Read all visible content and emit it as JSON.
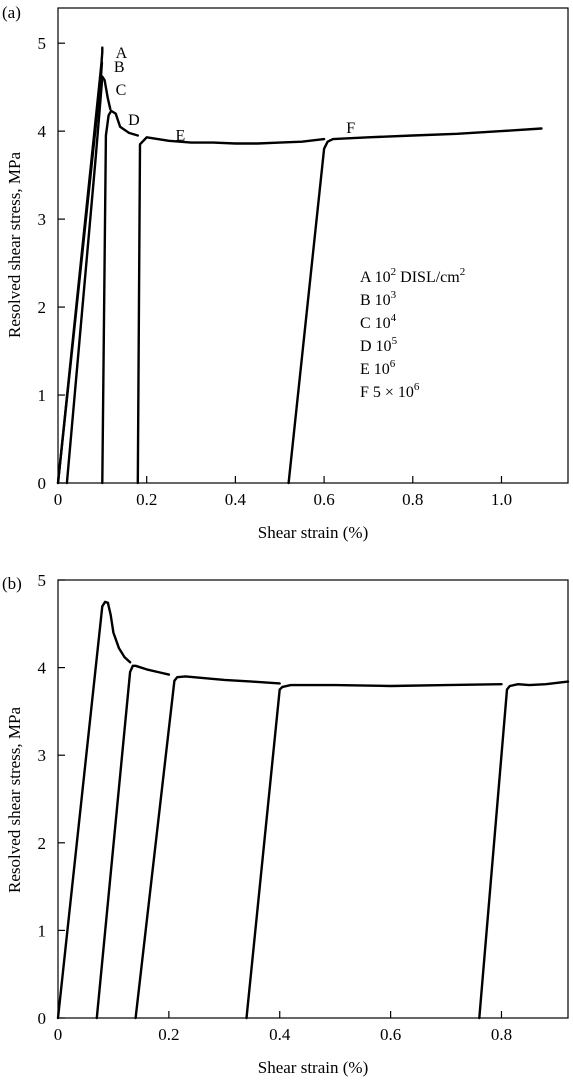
{
  "chart_data": [
    {
      "type": "line",
      "panel_label": "(a)",
      "xlabel": "Shear strain (%)",
      "ylabel": "Resolved shear stress, MPa",
      "xlim": [
        0,
        1.15
      ],
      "ylim": [
        0,
        5.4
      ],
      "xticks": [
        0,
        0.2,
        0.4,
        0.6,
        0.8,
        1.0
      ],
      "xtick_labels": [
        "0",
        "0.2",
        "0.4",
        "0.6",
        "0.8",
        "1.0"
      ],
      "yticks": [
        0,
        1,
        2,
        3,
        4,
        5
      ],
      "ytick_labels": [
        "0",
        "1",
        "2",
        "3",
        "4",
        "5"
      ],
      "grid": false,
      "legend": {
        "placement": "right-middle",
        "entries": [
          {
            "letter": "A",
            "text": "10",
            "sup": "2",
            "suffix": " DISL/cm",
            "suffix_sup": "2"
          },
          {
            "letter": "B",
            "text": "10",
            "sup": "3",
            "suffix": "",
            "suffix_sup": ""
          },
          {
            "letter": "C",
            "text": "10",
            "sup": "4",
            "suffix": "",
            "suffix_sup": ""
          },
          {
            "letter": "D",
            "text": "10",
            "sup": "5",
            "suffix": "",
            "suffix_sup": ""
          },
          {
            "letter": "E",
            "text": "10",
            "sup": "6",
            "suffix": "",
            "suffix_sup": ""
          },
          {
            "letter": "F",
            "text": "5 × 10",
            "sup": "6",
            "suffix": "",
            "suffix_sup": ""
          }
        ]
      },
      "series": [
        {
          "label": "A",
          "x": [
            0.0,
            0.095,
            0.098,
            0.1,
            0.1
          ],
          "y": [
            0.0,
            4.62,
            4.78,
            4.9,
            4.95
          ],
          "label_at": [
            0.13,
            4.9
          ]
        },
        {
          "label": "B",
          "x": [
            0.0,
            0.097,
            0.099
          ],
          "y": [
            0.0,
            4.62,
            4.78
          ],
          "label_at": [
            0.126,
            4.74
          ]
        },
        {
          "label": "C",
          "x": [
            0.02,
            0.085,
            0.098,
            0.1,
            0.105,
            0.112,
            0.118
          ],
          "y": [
            0.0,
            3.7,
            4.5,
            4.62,
            4.58,
            4.38,
            4.25
          ],
          "label_at": [
            0.13,
            4.48
          ]
        },
        {
          "label": "D",
          "x": [
            0.1,
            0.108,
            0.114,
            0.12,
            0.13,
            0.14,
            0.16,
            0.18
          ],
          "y": [
            0.0,
            3.95,
            4.18,
            4.23,
            4.2,
            4.05,
            3.98,
            3.95
          ],
          "label_at": [
            0.158,
            4.14
          ]
        },
        {
          "label": "E",
          "x": [
            0.18,
            0.185,
            0.2,
            0.25,
            0.3,
            0.35,
            0.4,
            0.45,
            0.5,
            0.55,
            0.6
          ],
          "y": [
            0.0,
            3.85,
            3.93,
            3.89,
            3.87,
            3.87,
            3.86,
            3.86,
            3.87,
            3.88,
            3.91
          ],
          "label_at": [
            0.265,
            3.96
          ]
        },
        {
          "label": "F",
          "x": [
            0.52,
            0.6,
            0.608,
            0.62,
            0.7,
            0.8,
            0.9,
            1.0,
            1.09
          ],
          "y": [
            0.0,
            3.8,
            3.88,
            3.91,
            3.93,
            3.95,
            3.97,
            4.0,
            4.03
          ],
          "label_at": [
            0.65,
            4.05
          ]
        }
      ]
    },
    {
      "type": "line",
      "panel_label": "(b)",
      "xlabel": "Shear strain (%)",
      "ylabel": "Resolved shear stress, MPa",
      "xlim": [
        0,
        0.92
      ],
      "ylim": [
        0,
        5.0
      ],
      "xticks": [
        0,
        0.2,
        0.4,
        0.6,
        0.8
      ],
      "xtick_labels": [
        "0",
        "0.2",
        "0.4",
        "0.6",
        "0.8"
      ],
      "yticks": [
        0,
        1,
        2,
        3,
        4,
        5
      ],
      "ytick_labels": [
        "0",
        "1",
        "2",
        "3",
        "4",
        "5"
      ],
      "grid": false,
      "series": [
        {
          "x": [
            0.0,
            0.08,
            0.085,
            0.09,
            0.095,
            0.1,
            0.11,
            0.12,
            0.13
          ],
          "y": [
            0.0,
            4.7,
            4.75,
            4.74,
            4.6,
            4.4,
            4.22,
            4.12,
            4.06
          ]
        },
        {
          "x": [
            0.07,
            0.13,
            0.135,
            0.14,
            0.16,
            0.18,
            0.2
          ],
          "y": [
            0.0,
            3.95,
            4.02,
            4.02,
            3.98,
            3.95,
            3.92
          ]
        },
        {
          "x": [
            0.14,
            0.21,
            0.215,
            0.23,
            0.3,
            0.35,
            0.4
          ],
          "y": [
            0.0,
            3.85,
            3.89,
            3.9,
            3.86,
            3.84,
            3.82
          ]
        },
        {
          "x": [
            0.34,
            0.4,
            0.405,
            0.42,
            0.5,
            0.6,
            0.7,
            0.8
          ],
          "y": [
            0.0,
            3.75,
            3.78,
            3.8,
            3.8,
            3.79,
            3.8,
            3.81
          ]
        },
        {
          "x": [
            0.76,
            0.81,
            0.815,
            0.83,
            0.85,
            0.88,
            0.92
          ],
          "y": [
            0.0,
            3.75,
            3.79,
            3.81,
            3.8,
            3.81,
            3.84
          ]
        }
      ]
    }
  ]
}
